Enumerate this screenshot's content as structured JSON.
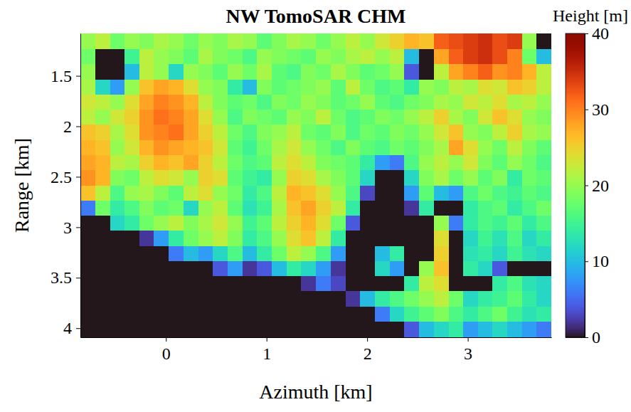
{
  "chart_data": {
    "type": "heatmap",
    "title": "NW TomoSAR CHM",
    "x_label": "Azimuth [km]",
    "y_label": "Range [km]",
    "xlim": [
      -0.85,
      3.83
    ],
    "xticks": [
      0,
      1,
      2,
      3
    ],
    "ylim": [
      1.08,
      4.09
    ],
    "yticks": [
      1.5,
      2,
      2.5,
      3,
      3.5,
      4
    ],
    "x": [
      -0.78,
      -0.63,
      -0.48,
      -0.34,
      -0.19,
      -0.05,
      0.1,
      0.25,
      0.39,
      0.54,
      0.69,
      0.83,
      0.98,
      1.13,
      1.27,
      1.42,
      1.56,
      1.71,
      1.86,
      2.0,
      2.15,
      2.3,
      2.44,
      2.59,
      2.74,
      2.88,
      3.03,
      3.17,
      3.32,
      3.47,
      3.61,
      3.76
    ],
    "y": [
      1.16,
      1.31,
      1.46,
      1.61,
      1.76,
      1.91,
      2.06,
      2.21,
      2.36,
      2.51,
      2.66,
      2.81,
      2.96,
      3.11,
      3.26,
      3.41,
      3.56,
      3.71,
      3.86,
      4.01
    ],
    "z": [
      [
        20,
        22,
        18,
        20,
        19,
        21,
        20,
        18,
        20,
        19,
        21,
        20,
        17,
        19,
        21,
        20,
        18,
        20,
        22,
        20,
        23,
        25,
        27,
        26,
        32,
        33,
        34,
        35,
        33,
        34,
        20,
        0
      ],
      [
        18,
        0,
        0,
        15,
        22,
        20,
        19,
        17,
        21,
        19,
        18,
        16,
        20,
        19,
        18,
        17,
        20,
        19,
        21,
        22,
        20,
        22,
        10,
        0,
        28,
        32,
        34,
        35,
        33,
        30,
        18,
        10
      ],
      [
        20,
        0,
        0,
        10,
        22,
        20,
        12,
        20,
        19,
        17,
        20,
        18,
        21,
        17,
        16,
        19,
        18,
        21,
        19,
        17,
        18,
        20,
        4,
        0,
        22,
        28,
        30,
        32,
        29,
        30,
        27,
        22
      ],
      [
        21,
        12,
        8,
        20,
        26,
        28,
        27,
        24,
        20,
        19,
        14,
        10,
        19,
        17,
        18,
        19,
        20,
        17,
        22,
        18,
        16,
        17,
        14,
        20,
        19,
        22,
        21,
        24,
        23,
        26,
        25,
        22
      ],
      [
        23,
        22,
        20,
        24,
        28,
        30,
        29,
        27,
        22,
        19,
        17,
        18,
        16,
        19,
        18,
        20,
        19,
        17,
        18,
        20,
        17,
        16,
        18,
        19,
        21,
        20,
        23,
        22,
        24,
        21,
        22,
        20
      ],
      [
        22,
        20,
        23,
        25,
        29,
        31,
        30,
        28,
        24,
        20,
        16,
        19,
        18,
        17,
        20,
        19,
        22,
        18,
        16,
        17,
        19,
        18,
        20,
        22,
        25,
        21,
        19,
        23,
        26,
        24,
        20,
        19
      ],
      [
        26,
        25,
        21,
        24,
        29,
        30,
        31,
        28,
        25,
        22,
        18,
        16,
        19,
        20,
        22,
        18,
        17,
        19,
        16,
        18,
        17,
        19,
        18,
        20,
        23,
        26,
        20,
        19,
        22,
        25,
        21,
        20
      ],
      [
        27,
        26,
        20,
        23,
        27,
        29,
        28,
        27,
        26,
        23,
        17,
        15,
        18,
        21,
        23,
        20,
        18,
        16,
        19,
        17,
        16,
        18,
        17,
        19,
        21,
        28,
        24,
        20,
        18,
        22,
        19,
        17
      ],
      [
        28,
        27,
        22,
        21,
        25,
        27,
        26,
        28,
        25,
        22,
        18,
        16,
        17,
        22,
        24,
        22,
        19,
        18,
        17,
        14,
        8,
        6,
        16,
        20,
        22,
        20,
        23,
        19,
        17,
        20,
        18,
        16
      ],
      [
        29,
        27,
        19,
        18,
        22,
        24,
        23,
        20,
        25,
        24,
        17,
        15,
        14,
        20,
        25,
        24,
        21,
        19,
        17,
        12,
        0,
        0,
        12,
        19,
        21,
        18,
        20,
        17,
        19,
        14,
        18,
        17
      ],
      [
        26,
        22,
        16,
        20,
        21,
        19,
        17,
        22,
        24,
        20,
        18,
        14,
        16,
        22,
        27,
        26,
        24,
        20,
        16,
        3,
        0,
        0,
        8,
        17,
        10,
        8,
        16,
        18,
        16,
        15,
        17,
        16
      ],
      [
        6,
        18,
        14,
        16,
        19,
        17,
        18,
        12,
        20,
        22,
        17,
        13,
        15,
        21,
        26,
        28,
        25,
        22,
        14,
        0,
        0,
        0,
        2,
        14,
        0,
        0,
        14,
        16,
        17,
        14,
        16,
        18
      ],
      [
        0,
        0,
        12,
        14,
        18,
        20,
        22,
        19,
        21,
        23,
        20,
        15,
        17,
        22,
        25,
        27,
        24,
        18,
        4,
        0,
        0,
        0,
        0,
        0,
        20,
        6,
        14,
        16,
        15,
        17,
        14,
        16
      ],
      [
        0,
        0,
        0,
        0,
        2,
        8,
        14,
        18,
        20,
        22,
        19,
        14,
        16,
        20,
        24,
        26,
        22,
        14,
        0,
        0,
        0,
        0,
        0,
        0,
        24,
        0,
        12,
        15,
        13,
        16,
        12,
        14
      ],
      [
        0,
        0,
        0,
        0,
        0,
        0,
        6,
        10,
        8,
        12,
        16,
        10,
        14,
        18,
        22,
        20,
        16,
        8,
        0,
        0,
        10,
        14,
        0,
        0,
        25,
        0,
        13,
        14,
        12,
        15,
        13,
        12
      ],
      [
        0,
        0,
        0,
        0,
        0,
        0,
        0,
        0,
        0,
        4,
        8,
        2,
        4,
        10,
        14,
        12,
        8,
        2,
        0,
        0,
        12,
        8,
        0,
        20,
        26,
        0,
        14,
        12,
        4,
        0,
        0,
        0
      ],
      [
        0,
        0,
        0,
        0,
        0,
        0,
        0,
        0,
        0,
        0,
        0,
        0,
        0,
        0,
        0,
        2,
        6,
        3,
        0,
        0,
        0,
        0,
        14,
        22,
        24,
        0,
        0,
        0,
        14,
        16,
        13,
        12
      ],
      [
        0,
        0,
        0,
        0,
        0,
        0,
        0,
        0,
        0,
        0,
        0,
        0,
        0,
        0,
        0,
        0,
        0,
        0,
        2,
        10,
        14,
        16,
        18,
        20,
        22,
        18,
        12,
        14,
        15,
        17,
        14,
        12
      ],
      [
        0,
        0,
        0,
        0,
        0,
        0,
        0,
        0,
        0,
        0,
        0,
        0,
        0,
        0,
        0,
        0,
        0,
        0,
        0,
        0,
        6,
        12,
        15,
        17,
        19,
        16,
        14,
        16,
        18,
        15,
        13,
        14
      ],
      [
        0,
        0,
        0,
        0,
        0,
        0,
        0,
        0,
        0,
        0,
        0,
        0,
        0,
        0,
        0,
        0,
        0,
        0,
        0,
        0,
        0,
        0,
        4,
        10,
        12,
        14,
        8,
        10,
        12,
        10,
        8,
        6
      ]
    ],
    "colorbar": {
      "label": "Height [m]",
      "range": [
        0,
        40
      ],
      "ticks": [
        0,
        10,
        20,
        30,
        40
      ]
    }
  }
}
